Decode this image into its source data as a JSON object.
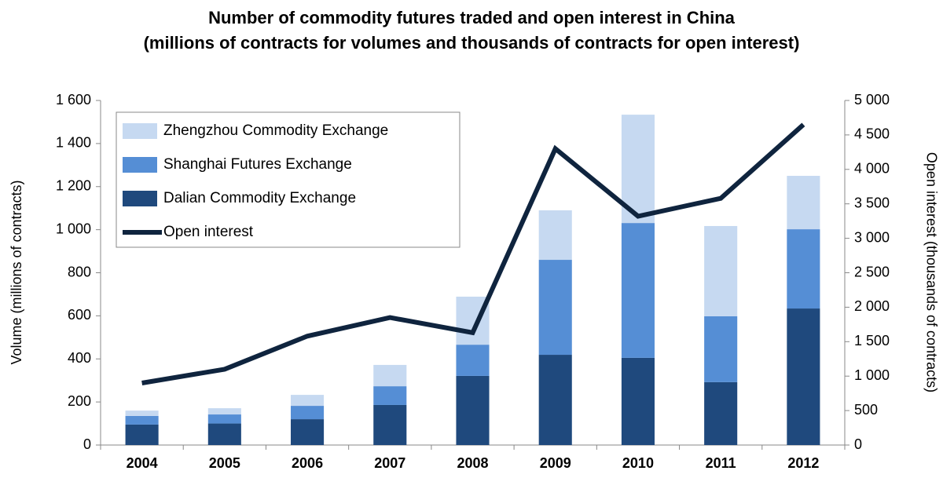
{
  "chart_data": {
    "type": "bar",
    "title": "Number of commodity futures traded and open interest in China",
    "subtitle": "(millions of contracts for volumes and thousands of contracts for open interest)",
    "y_label": "Volume (millions of contracts)",
    "y2_label": "Open interest (thousands of contracts)",
    "categories": [
      "2004",
      "2005",
      "2006",
      "2007",
      "2008",
      "2009",
      "2010",
      "2011",
      "2012"
    ],
    "series": [
      {
        "name": "Dalian Commodity Exchange",
        "color": "#1f497d",
        "type": "bar",
        "values": [
          95,
          100,
          120,
          186,
          321,
          419,
          405,
          292,
          634
        ]
      },
      {
        "name": "Shanghai Futures Exchange",
        "color": "#558ed5",
        "type": "bar",
        "values": [
          40,
          42,
          62,
          87,
          145,
          441,
          626,
          306,
          368
        ]
      },
      {
        "name": "Zhengzhou Commodity Exchange",
        "color": "#c6d9f1",
        "type": "bar",
        "values": [
          25,
          29,
          51,
          99,
          223,
          230,
          503,
          419,
          248
        ]
      },
      {
        "name": "Open interest",
        "color": "#0f243e",
        "type": "line",
        "axis": "y2",
        "values": [
          900,
          1100,
          1580,
          1850,
          1630,
          4300,
          3320,
          3580,
          4650
        ]
      }
    ],
    "stacked": true,
    "ylim": [
      0,
      1600
    ],
    "yticks": [
      0,
      200,
      400,
      600,
      800,
      {
        "value": 1000,
        "label": "1 000"
      },
      {
        "value": 1200,
        "label": "1 200"
      },
      {
        "value": 1400,
        "label": "1 400"
      },
      {
        "value": 1600,
        "label": "1 600"
      }
    ],
    "y2lim": [
      0,
      5000
    ],
    "y2ticks": [
      0,
      500,
      {
        "value": 1000,
        "label": "1 000"
      },
      {
        "value": 1500,
        "label": "1 500"
      },
      {
        "value": 2000,
        "label": "2 000"
      },
      {
        "value": 2500,
        "label": "2 500"
      },
      {
        "value": 3000,
        "label": "3 000"
      },
      {
        "value": 3500,
        "label": "3 500"
      },
      {
        "value": 4000,
        "label": "4 000"
      },
      {
        "value": 4500,
        "label": "4 500"
      },
      {
        "value": 5000,
        "label": "5 000"
      }
    ],
    "legend": "top-left"
  }
}
